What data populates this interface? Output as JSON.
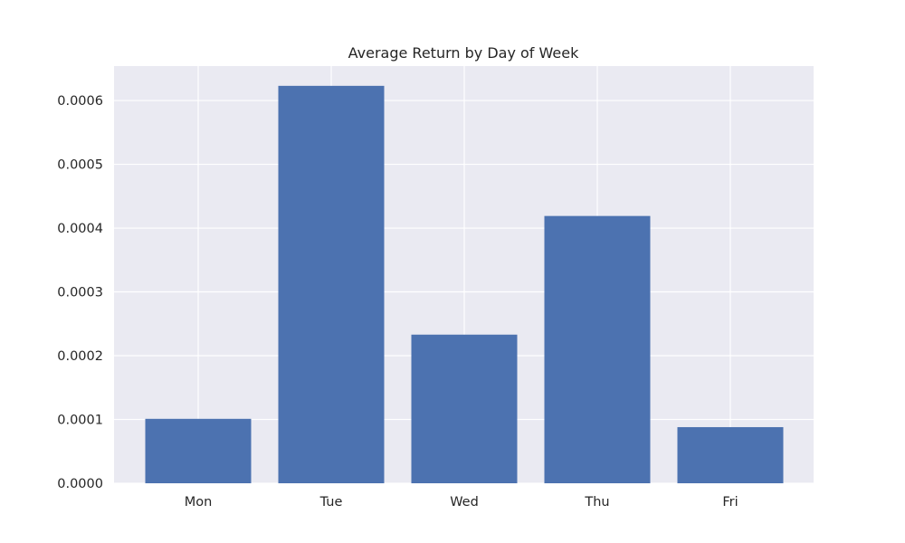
{
  "chart_data": {
    "type": "bar",
    "title": "Average Return by Day of Week",
    "xlabel": "",
    "ylabel": "",
    "categories": [
      "Mon",
      "Tue",
      "Wed",
      "Thu",
      "Fri"
    ],
    "values": [
      0.000101,
      0.000623,
      0.000233,
      0.000419,
      8.8e-05
    ],
    "ylim": [
      0,
      0.000654
    ],
    "yticks": [
      0,
      0.0001,
      0.0002,
      0.0003,
      0.0004,
      0.0005,
      0.0006
    ],
    "ytick_labels": [
      "0.0000",
      "0.0001",
      "0.0002",
      "0.0003",
      "0.0004",
      "0.0005",
      "0.0006"
    ],
    "grid": true,
    "style": "seaborn-darkgrid",
    "colors": {
      "bar": "#4c72b0",
      "plot_background": "#eaeaf2",
      "grid": "#ffffff",
      "text": "#262626"
    }
  }
}
